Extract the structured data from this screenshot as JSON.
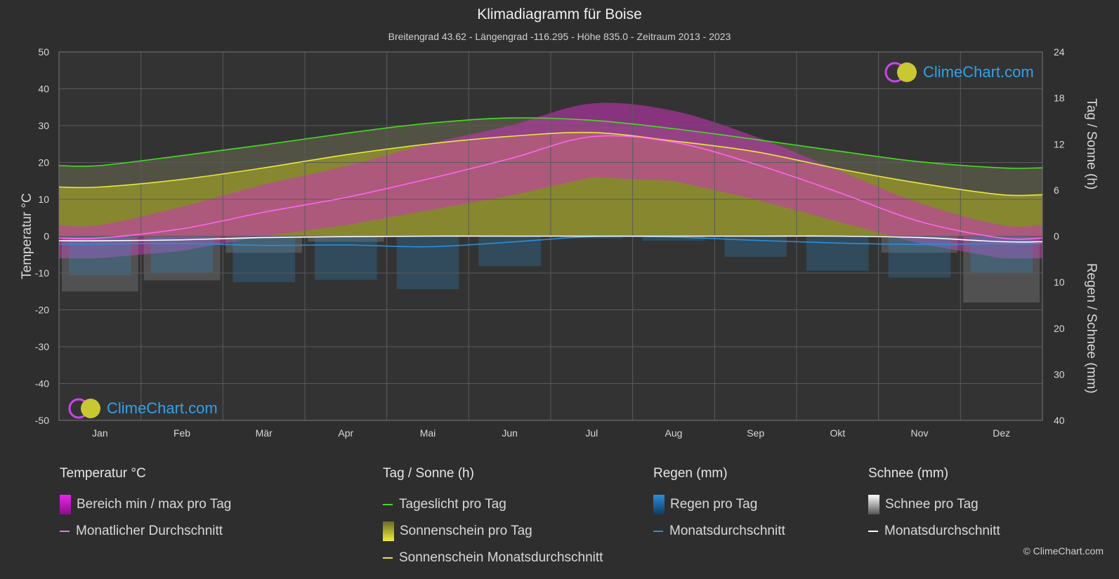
{
  "title": "Klimadiagramm für Boise",
  "subtitle": "Breitengrad 43.62 - Längengrad -116.295 - Höhe 835.0 - Zeitraum 2013 - 2023",
  "logo_text": "ClimeChart.com",
  "copyright": "© ClimeChart.com",
  "colors": {
    "background": "#2e2e2e",
    "daylight": "#44dd22",
    "sunshine_avg": "#e8e840",
    "sunshine_fill": "#9a9a2a",
    "temp_avg": "#ff66ee",
    "temp_range": "#cc33bb",
    "rain": "#2a8fd8",
    "snow_avg": "#ffffff",
    "snow_fill": "#8a8a8a"
  },
  "legend": {
    "temp_head": "Temperatur °C",
    "temp_range": "Bereich min / max pro Tag",
    "temp_avg": "Monatlicher Durchschnitt",
    "sun_head": "Tag / Sonne (h)",
    "daylight": "Tageslicht pro Tag",
    "sunshine": "Sonnenschein pro Tag",
    "sunshine_avg": "Sonnenschein Monatsdurchschnitt",
    "rain_head": "Regen (mm)",
    "rain_day": "Regen pro Tag",
    "rain_avg": "Monatsdurchschnitt",
    "snow_head": "Schnee (mm)",
    "snow_day": "Schnee pro Tag",
    "snow_avg": "Monatsdurchschnitt"
  },
  "chart_data": {
    "type": "line",
    "categories": [
      "Jan",
      "Feb",
      "Mär",
      "Apr",
      "Mai",
      "Jun",
      "Jul",
      "Aug",
      "Sep",
      "Okt",
      "Nov",
      "Dez"
    ],
    "left_axis": {
      "label": "Temperatur °C",
      "ylim": [
        -50,
        50
      ],
      "ticks": [
        50,
        40,
        30,
        20,
        10,
        0,
        -10,
        -20,
        -30,
        -40,
        -50
      ]
    },
    "right_axis_top": {
      "label": "Tag / Sonne (h)",
      "ylim": [
        0,
        24
      ],
      "ticks": [
        24,
        18,
        12,
        6,
        0
      ]
    },
    "right_axis_bottom": {
      "label": "Regen / Schnee (mm)",
      "ylim": [
        0,
        40
      ],
      "ticks": [
        0,
        10,
        20,
        30,
        40
      ]
    },
    "series": [
      {
        "name": "Tageslicht pro Tag",
        "axis": "sun",
        "values": [
          9.2,
          10.5,
          11.9,
          13.4,
          14.7,
          15.4,
          15.1,
          14.0,
          12.6,
          11.1,
          9.7,
          8.9
        ]
      },
      {
        "name": "Sonnenschein Monatsdurchschnitt",
        "axis": "sun",
        "values": [
          6.4,
          7.4,
          8.9,
          10.6,
          12.0,
          13.0,
          13.5,
          12.4,
          11.0,
          8.8,
          6.9,
          5.4
        ]
      },
      {
        "name": "Monatlicher Durchschnitt",
        "axis": "temp",
        "values": [
          -0.5,
          2.0,
          6.5,
          10.5,
          15.5,
          21.0,
          27.0,
          25.5,
          19.5,
          12.0,
          4.0,
          -0.5
        ]
      },
      {
        "name": "Regen Monatsdurchschnitt",
        "axis": "rain",
        "values": [
          1.7,
          1.6,
          2.0,
          1.9,
          2.3,
          1.3,
          0.1,
          0.2,
          0.9,
          1.5,
          1.8,
          1.6
        ]
      },
      {
        "name": "Schnee Monatsdurchschnitt",
        "axis": "rain",
        "values": [
          1.0,
          0.8,
          0.3,
          0.1,
          0.0,
          0.0,
          0.0,
          0.0,
          0.0,
          0.0,
          0.3,
          1.2
        ]
      }
    ],
    "temp_range": {
      "max": [
        3,
        8,
        14,
        19,
        25,
        30,
        36,
        34,
        27,
        18,
        9,
        3
      ],
      "min": [
        -6,
        -4,
        0,
        3,
        7,
        11,
        16,
        15,
        10,
        4,
        -2,
        -6
      ]
    },
    "grid": true
  }
}
